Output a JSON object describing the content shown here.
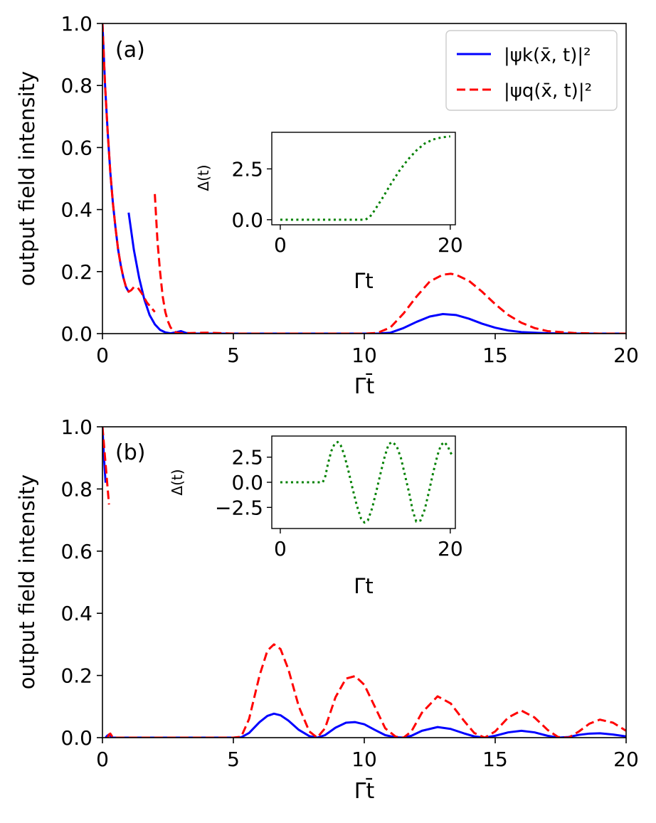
{
  "figure": {
    "colors": {
      "blue": "#0000ff",
      "red": "#ff0000",
      "green": "#008000",
      "axis": "#000000",
      "background": "#ffffff"
    }
  },
  "legend": {
    "entries": [
      {
        "label": "|ψk(x̄, t)|²",
        "color": "#0000ff",
        "style": "solid"
      },
      {
        "label": "|ψq(x̄, t)|²",
        "color": "#ff0000",
        "style": "dashed"
      }
    ],
    "placement": "top-right of panel (a)"
  },
  "chart_data": [
    {
      "type": "line",
      "panel_label": "(a)",
      "xlabel": "Γt̄",
      "ylabel": "output field intensity",
      "xlim": [
        0,
        20
      ],
      "ylim": [
        0,
        1.0
      ],
      "xticks": [
        "0",
        "5",
        "10",
        "15",
        "20"
      ],
      "yticks": [
        "0.0",
        "0.2",
        "0.4",
        "0.6",
        "0.8",
        "1.0"
      ],
      "series": [
        {
          "name": "|ψk(x̄, t)|²",
          "color": "#0000ff",
          "style": "solid",
          "segments": [
            {
              "x": [
                0.0,
                0.1,
                0.2,
                0.3,
                0.4,
                0.5,
                0.6,
                0.7,
                0.8,
                0.9,
                1.0
              ],
              "y": [
                1.0,
                0.8,
                0.65,
                0.52,
                0.42,
                0.34,
                0.27,
                0.22,
                0.18,
                0.15,
                0.135
              ]
            },
            {
              "x": [
                1.0,
                1.2,
                1.4,
                1.6,
                1.8,
                2.0,
                2.2,
                2.4,
                2.6,
                2.8,
                3.0,
                3.2,
                3.5,
                4.0,
                5.0,
                7.0,
                10.0,
                10.5,
                11.0,
                11.5,
                12.0,
                12.5,
                13.0,
                13.5,
                14.0,
                14.5,
                15.0,
                15.5,
                16.0,
                17.0,
                18.0,
                20.0
              ],
              "y": [
                0.39,
                0.27,
                0.18,
                0.11,
                0.06,
                0.03,
                0.012,
                0.004,
                0.001,
                0.004,
                0.008,
                0.002,
                0.0,
                0.0,
                0.0,
                0.0,
                0.0,
                0.0,
                0.003,
                0.018,
                0.038,
                0.055,
                0.063,
                0.06,
                0.048,
                0.032,
                0.019,
                0.01,
                0.005,
                0.001,
                0.0,
                0.0
              ]
            }
          ]
        },
        {
          "name": "|ψq(x̄, t)|²",
          "color": "#ff0000",
          "style": "dashed",
          "segments": [
            {
              "x": [
                0.0,
                0.1,
                0.2,
                0.3,
                0.4,
                0.5,
                0.6,
                0.7,
                0.8,
                0.9,
                1.0,
                1.1,
                1.2,
                1.35,
                1.5,
                1.7,
                1.9,
                2.0
              ],
              "y": [
                1.0,
                0.8,
                0.65,
                0.52,
                0.42,
                0.34,
                0.27,
                0.22,
                0.18,
                0.15,
                0.135,
                0.14,
                0.15,
                0.148,
                0.13,
                0.1,
                0.08,
                0.07
              ]
            },
            {
              "x": [
                2.0,
                2.1,
                2.2,
                2.3,
                2.4,
                2.5,
                2.6,
                2.7,
                2.8,
                3.0,
                3.5,
                4.0,
                5.0,
                8.0,
                10.0,
                10.5,
                11.0,
                11.5,
                12.0,
                12.5,
                13.0,
                13.3,
                13.5,
                14.0,
                14.5,
                15.0,
                15.5,
                16.0,
                16.5,
                17.0,
                18.0,
                19.0,
                20.0
              ],
              "y": [
                0.45,
                0.3,
                0.2,
                0.12,
                0.07,
                0.04,
                0.02,
                0.01,
                0.004,
                0.001,
                0.002,
                0.003,
                0.0,
                0.0,
                0.0,
                0.002,
                0.02,
                0.065,
                0.12,
                0.168,
                0.19,
                0.193,
                0.19,
                0.17,
                0.135,
                0.095,
                0.06,
                0.035,
                0.018,
                0.008,
                0.002,
                0.0,
                0.0
              ]
            }
          ]
        }
      ],
      "inset": {
        "ylabel": "Δ(t)",
        "xlabel": "Γt",
        "xlim": [
          -1,
          20.6
        ],
        "ylim": [
          -0.25,
          4.3
        ],
        "xticks": [
          "0",
          "20"
        ],
        "yticks": [
          "0.0",
          "2.5"
        ],
        "series": [
          {
            "name": "Δ(t)",
            "color": "#008000",
            "style": "dotted",
            "x": [
              0,
              2,
              4,
              6,
              8,
              10,
              10.5,
              11,
              12,
              13,
              14,
              15,
              16,
              17,
              18,
              19,
              20
            ],
            "y": [
              0,
              0,
              0,
              0,
              0,
              0,
              0.12,
              0.4,
              1.05,
              1.75,
              2.4,
              2.95,
              3.4,
              3.75,
              3.95,
              4.05,
              4.1
            ]
          }
        ]
      }
    },
    {
      "type": "line",
      "panel_label": "(b)",
      "xlabel": "Γt̄",
      "ylabel": "output field intensity",
      "xlim": [
        0,
        20
      ],
      "ylim": [
        0,
        1.0
      ],
      "xticks": [
        "0",
        "5",
        "10",
        "15",
        "20"
      ],
      "yticks": [
        "0.0",
        "0.2",
        "0.4",
        "0.6",
        "0.8",
        "1.0"
      ],
      "series": [
        {
          "name": "|ψk(x̄, t)|²",
          "color": "#0000ff",
          "style": "solid",
          "segments": [
            {
              "x": [
                0.0,
                0.04,
                0.08,
                0.12
              ],
              "y": [
                1.0,
                0.93,
                0.87,
                0.82
              ]
            },
            {
              "x": [
                0.12,
                0.18,
                0.25,
                0.32,
                0.4,
                1.0,
                3.0,
                5.0,
                5.3,
                5.6,
                6.0,
                6.3,
                6.55,
                6.8,
                7.1,
                7.5,
                7.9,
                8.2,
                8.5,
                8.9,
                9.3,
                9.65,
                10.0,
                10.4,
                10.8,
                11.2,
                11.5,
                11.8,
                12.2,
                12.8,
                13.3,
                13.8,
                14.2,
                14.6,
                15.0,
                15.5,
                16.0,
                16.5,
                17.0,
                17.4,
                17.8,
                18.2,
                18.6,
                19.0,
                19.5,
                20.0
              ],
              "y": [
                0.0,
                0.006,
                0.01,
                0.004,
                0.0,
                0.0,
                0.0,
                0.0,
                0.001,
                0.015,
                0.05,
                0.07,
                0.077,
                0.072,
                0.055,
                0.025,
                0.005,
                0.0,
                0.008,
                0.032,
                0.048,
                0.05,
                0.043,
                0.025,
                0.008,
                0.001,
                0.0,
                0.006,
                0.022,
                0.034,
                0.028,
                0.014,
                0.004,
                0.0,
                0.006,
                0.017,
                0.022,
                0.017,
                0.006,
                0.0,
                0.002,
                0.009,
                0.013,
                0.014,
                0.01,
                0.004
              ]
            }
          ]
        },
        {
          "name": "|ψq(x̄, t)|²",
          "color": "#ff0000",
          "style": "dashed",
          "segments": [
            {
              "x": [
                0.0,
                0.05,
                0.1,
                0.15,
                0.2,
                0.25
              ],
              "y": [
                1.0,
                0.95,
                0.9,
                0.85,
                0.8,
                0.75
              ]
            },
            {
              "x": [
                0.2,
                0.25,
                0.3,
                0.4,
                1.0,
                3.0,
                5.0,
                5.3,
                5.6,
                6.0,
                6.3,
                6.55,
                6.8,
                7.1,
                7.5,
                7.9,
                8.2,
                8.5,
                8.9,
                9.3,
                9.65,
                10.0,
                10.4,
                10.8,
                11.2,
                11.5,
                11.8,
                12.2,
                12.8,
                13.3,
                13.8,
                14.2,
                14.6,
                15.0,
                15.5,
                16.0,
                16.5,
                17.0,
                17.4,
                17.8,
                18.2,
                18.6,
                19.0,
                19.5,
                20.0
              ],
              "y": [
                0.0,
                0.01,
                0.013,
                0.0,
                0.0,
                0.0,
                0.0,
                0.003,
                0.06,
                0.2,
                0.28,
                0.3,
                0.285,
                0.22,
                0.1,
                0.02,
                0.0,
                0.03,
                0.13,
                0.19,
                0.198,
                0.17,
                0.1,
                0.03,
                0.003,
                0.0,
                0.02,
                0.08,
                0.133,
                0.11,
                0.055,
                0.015,
                0.0,
                0.02,
                0.065,
                0.087,
                0.065,
                0.025,
                0.002,
                0.0,
                0.02,
                0.045,
                0.058,
                0.048,
                0.022
              ]
            }
          ]
        }
      ],
      "inset": {
        "ylabel": "Δ(t)",
        "xlabel": "Γt",
        "xlim": [
          -1,
          20.6
        ],
        "ylim": [
          -4.6,
          4.6
        ],
        "xticks": [
          "0",
          "20"
        ],
        "yticks": [
          "2.5",
          "0.0",
          "−2.5"
        ],
        "series": [
          {
            "name": "Δ(t)",
            "color": "#008000",
            "style": "dotted",
            "x": [
              0,
              1,
              2,
              3,
              4,
              5,
              5.3,
              5.6,
              6.0,
              6.4,
              6.75,
              7.1,
              7.5,
              8.0,
              8.5,
              9.0,
              9.5,
              9.9,
              10.3,
              10.8,
              11.3,
              11.8,
              12.3,
              12.75,
              13.2,
              13.7,
              14.2,
              14.7,
              15.2,
              15.6,
              16.0,
              16.5,
              17.0,
              17.5,
              18.0,
              18.5,
              18.9,
              19.3,
              19.7,
              20.0,
              20.3
            ],
            "y": [
              0,
              0,
              0,
              0,
              0,
              0,
              0.6,
              1.8,
              3.1,
              3.85,
              4.0,
              3.7,
              2.8,
              1.2,
              -0.6,
              -2.3,
              -3.6,
              -4.0,
              -3.8,
              -2.6,
              -0.9,
              0.9,
              2.6,
              3.8,
              4.0,
              3.6,
              2.4,
              0.6,
              -1.2,
              -2.9,
              -3.9,
              -3.8,
              -2.7,
              -0.9,
              1.0,
              2.7,
              3.7,
              4.0,
              3.6,
              3.0,
              2.6
            ]
          }
        ]
      }
    }
  ]
}
